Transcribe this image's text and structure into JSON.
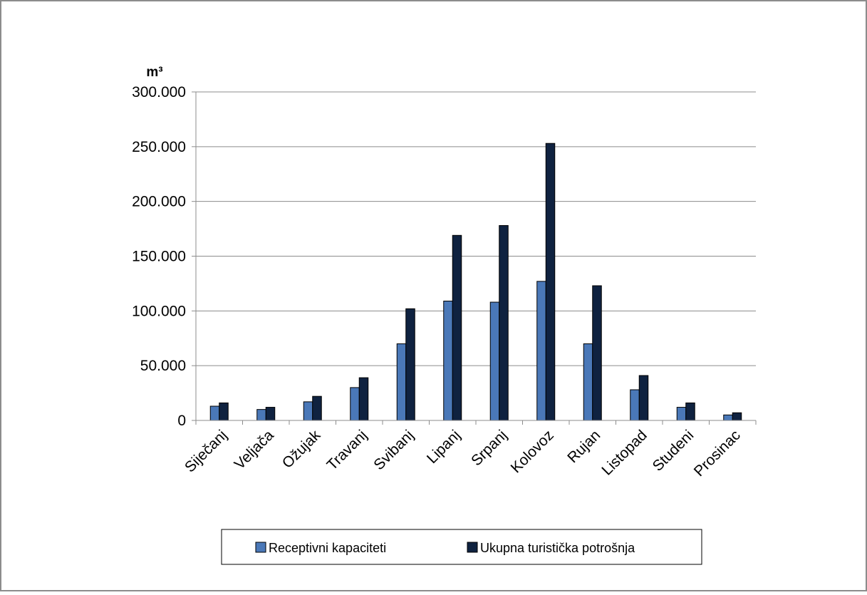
{
  "chart_data": {
    "type": "bar",
    "ylabel": "m³",
    "ylim": [
      0,
      300000
    ],
    "yticks": [
      0,
      50000,
      100000,
      150000,
      200000,
      250000,
      300000
    ],
    "ytick_labels": [
      "0",
      "50.000",
      "100.000",
      "150.000",
      "200.000",
      "250.000",
      "300.000"
    ],
    "grid": true,
    "legend_position": "bottom",
    "categories": [
      "Siječanj",
      "Veljača",
      "Ožujak",
      "Travanj",
      "Svibanj",
      "Lipanj",
      "Srpanj",
      "Kolovoz",
      "Rujan",
      "Listopad",
      "Studeni",
      "Prosinac"
    ],
    "series": [
      {
        "name": "Receptivni kapaciteti",
        "color": "#4a78b8",
        "values": [
          13000,
          10000,
          17000,
          30000,
          70000,
          109000,
          108000,
          127000,
          70000,
          28000,
          12000,
          5000
        ]
      },
      {
        "name": "Ukupna turistička potrošnja",
        "color": "#0f2240",
        "values": [
          16000,
          12000,
          22000,
          39000,
          102000,
          169000,
          178000,
          253000,
          123000,
          41000,
          16000,
          7000
        ]
      }
    ]
  }
}
